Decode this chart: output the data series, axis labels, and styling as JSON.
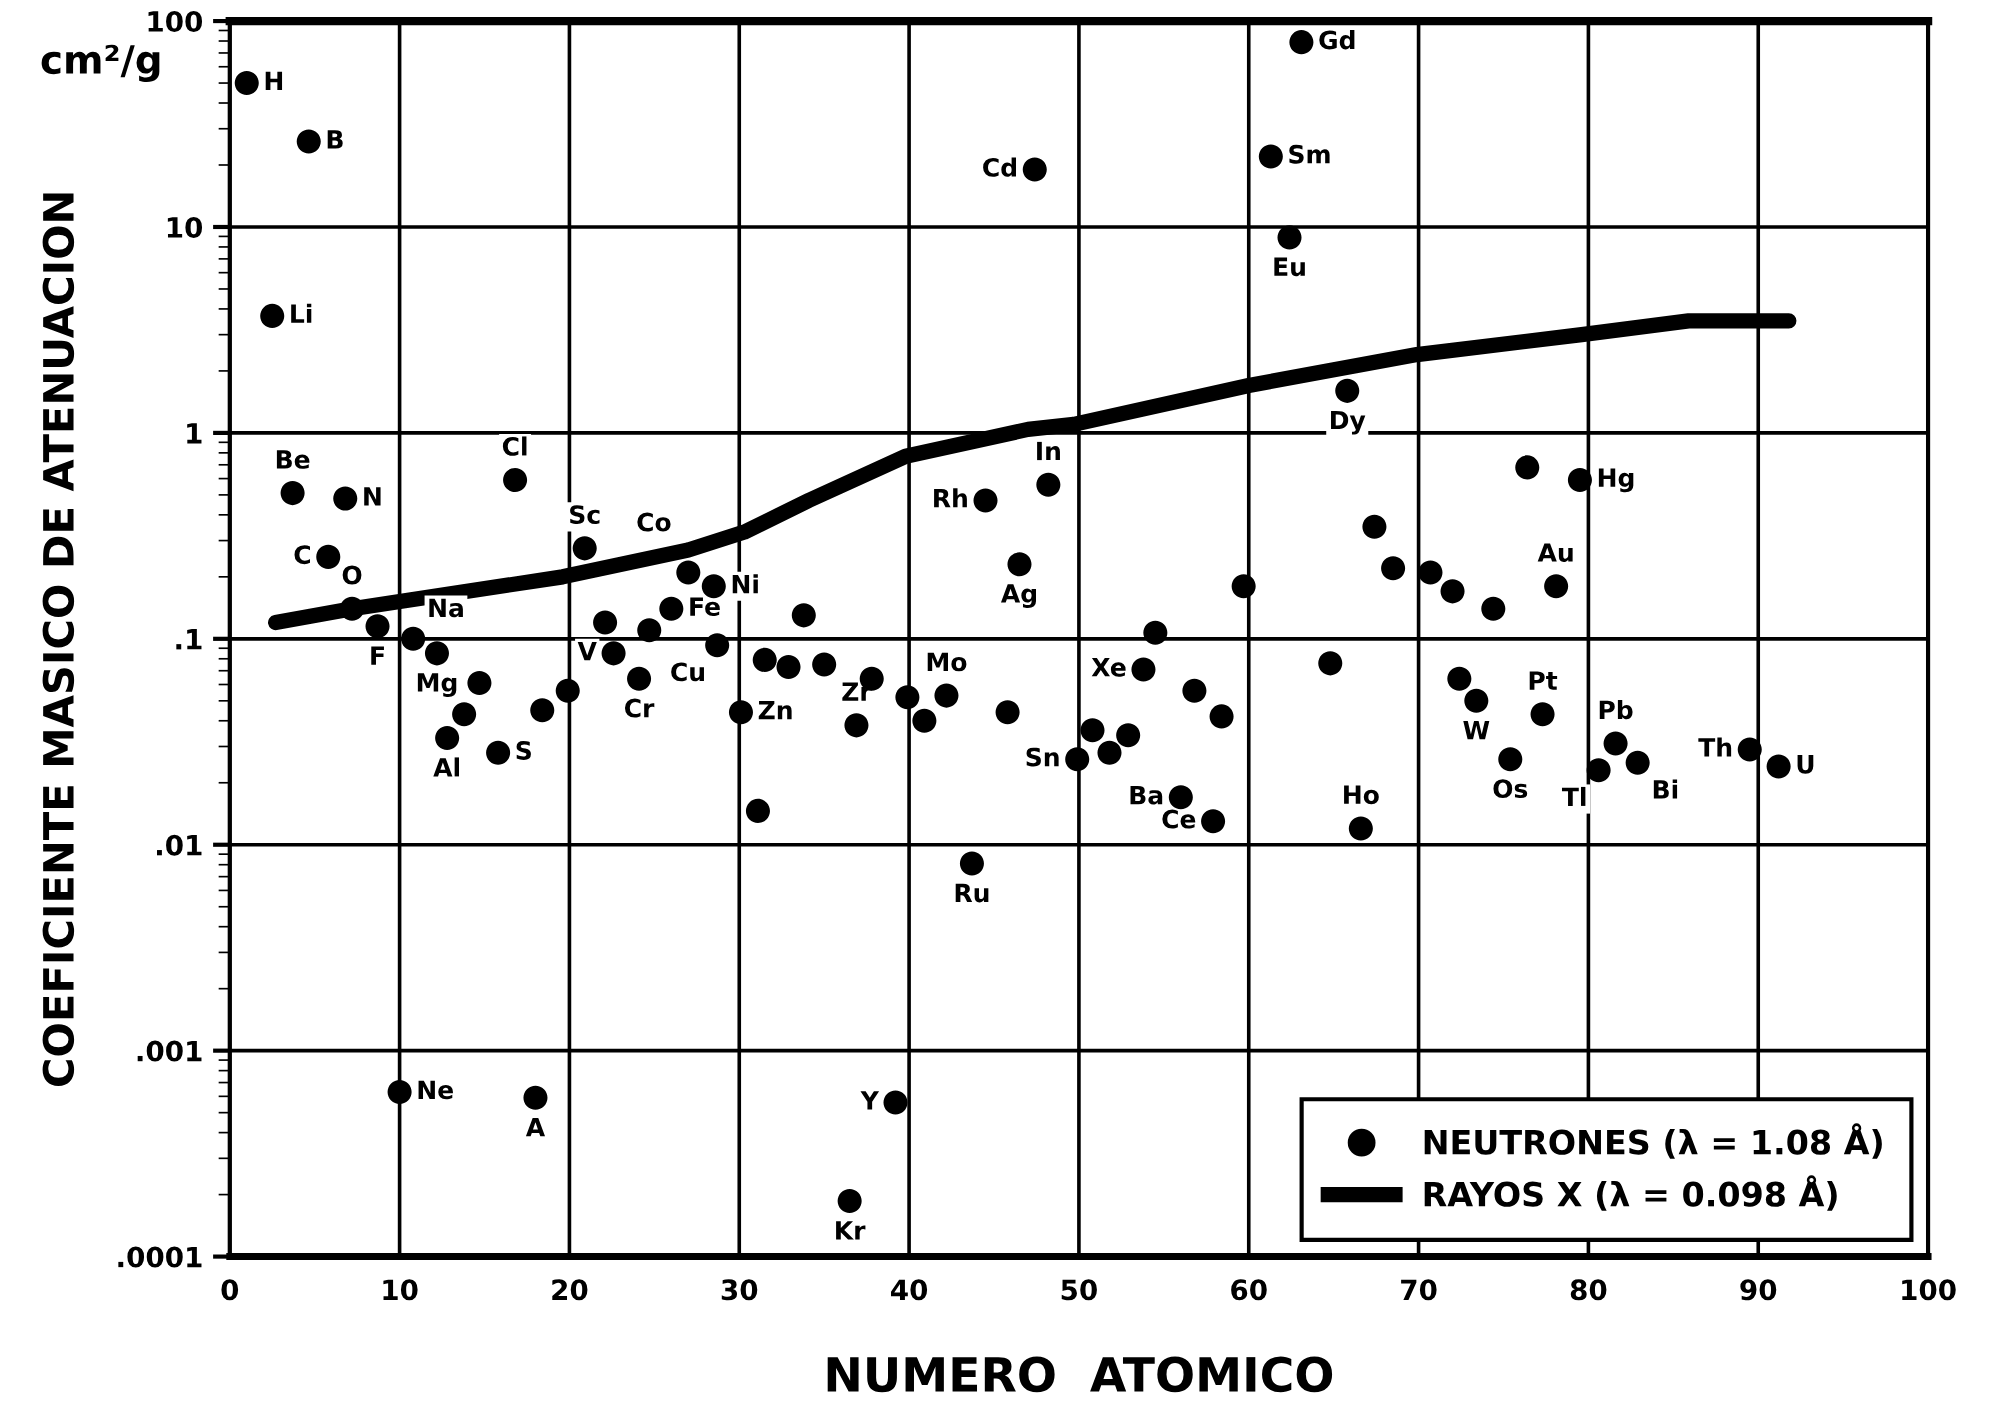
{
  "chart_data": {
    "type": "scatter",
    "xlabel": "NUMERO  ATOMICO",
    "ylabel": "COEFICIENTE MASICO DE ATENUACION",
    "log": "y",
    "grid": true,
    "legend": "bottom right",
    "xlim": [
      0,
      100
    ],
    "xticks": [
      0,
      10,
      20,
      30,
      40,
      50,
      60,
      70,
      80,
      90,
      100
    ],
    "ylim": [
      0.0001,
      100
    ],
    "yticks": [
      {
        "value": 0.0001,
        "label": ".0001"
      },
      {
        "value": 0.001,
        "label": ".001"
      },
      {
        "value": 0.01,
        "label": ".01"
      },
      {
        "value": 0.1,
        "label": ".1"
      },
      1,
      10,
      100
    ],
    "series": [
      {
        "name": "NEUTRONES (λ = 1.08 Å)",
        "color": "#000000",
        "marker": "circle",
        "x": [
          1,
          2.5,
          3.7,
          4.65,
          5.8,
          6.8,
          7.2,
          8.7,
          10,
          10.8,
          12.2,
          12.8,
          13.8,
          14.7,
          15.8,
          16.8,
          18,
          18.4,
          19.9,
          20.9,
          22.1,
          22.6,
          24.1,
          24.7,
          26,
          27,
          28.5,
          28.7,
          30.1,
          31.1,
          31.5,
          32.9,
          33.8,
          35,
          36.5,
          36.9,
          37.8,
          39.2,
          39.9,
          40.9,
          42.2,
          43.7,
          44.5,
          45.8,
          46.5,
          47.4,
          48.2,
          49.9,
          50.8,
          51.8,
          52.9,
          53.8,
          54.5,
          56,
          56.8,
          57.9,
          58.4,
          59.7,
          61.3,
          62.4,
          63.1,
          64.8,
          65.8,
          66.6,
          67.4,
          68.5,
          70.7,
          72,
          72.4,
          73.4,
          74.4,
          75.4,
          76.4,
          77.3,
          78.1,
          79.5,
          80.6,
          81.6,
          82.9,
          89.5,
          91.2
        ],
        "values": [
          50,
          3.7,
          0.51,
          26,
          0.25,
          0.48,
          0.14,
          0.115,
          0.00063,
          0.1,
          0.085,
          0.033,
          0.043,
          0.061,
          0.028,
          0.59,
          0.00059,
          0.045,
          0.056,
          0.275,
          0.12,
          0.085,
          0.064,
          0.11,
          0.14,
          0.21,
          0.18,
          0.093,
          0.044,
          0.0146,
          0.079,
          0.073,
          0.13,
          0.075,
          0.000186,
          0.038,
          0.064,
          0.00056,
          0.052,
          0.04,
          0.053,
          0.0081,
          0.47,
          0.044,
          0.23,
          19,
          0.56,
          0.026,
          0.036,
          0.028,
          0.034,
          0.071,
          0.107,
          0.017,
          0.056,
          0.013,
          0.042,
          0.18,
          22,
          8.9,
          79,
          0.076,
          1.6,
          0.012,
          0.35,
          0.22,
          0.21,
          0.17,
          0.064,
          0.05,
          0.14,
          0.026,
          0.68,
          0.043,
          0.18,
          0.59,
          0.023,
          0.031,
          0.025,
          0.029,
          0.024
        ]
      },
      {
        "name": "RAYOS X (λ = 0.098 Å)",
        "type": "line",
        "color": "#000000",
        "marker": "none",
        "line_style": "solid",
        "x": [
          2.7,
          7.2,
          19.6,
          27,
          30.3,
          34.1,
          39.8,
          47,
          49.7,
          60,
          69.9,
          79.6,
          85.9,
          91.8
        ],
        "values": [
          0.12,
          0.14,
          0.2,
          0.27,
          0.33,
          0.47,
          0.77,
          1.04,
          1.1,
          1.7,
          2.4,
          3.0,
          3.5,
          3.5
        ]
      }
    ],
    "annotations": [
      "cm²/g",
      {
        "text": "H",
        "x": 1,
        "y": 50
      },
      {
        "text": "Li",
        "x": 2.5,
        "y": 3.7
      },
      {
        "text": "Be",
        "x": 3.7,
        "y": 0.51
      },
      {
        "text": "B",
        "x": 4.65,
        "y": 26
      },
      {
        "text": "C",
        "x": 5.8,
        "y": 0.25
      },
      {
        "text": "N",
        "x": 6.8,
        "y": 0.48
      },
      {
        "text": "O",
        "x": 7.2,
        "y": 0.14
      },
      {
        "text": "F",
        "x": 8.7,
        "y": 0.115
      },
      {
        "text": "Ne",
        "x": 10,
        "y": 0.00063
      },
      {
        "text": "Na",
        "x": 10.8,
        "y": 0.1
      },
      {
        "text": "Mg",
        "x": 12.2,
        "y": 0.085
      },
      {
        "text": "Al",
        "x": 12.8,
        "y": 0.033
      },
      {
        "text": "S",
        "x": 15.8,
        "y": 0.028
      },
      {
        "text": "Cl",
        "x": 16.8,
        "y": 0.59
      },
      {
        "text": "A",
        "x": 18,
        "y": 0.00059
      },
      {
        "text": "Sc",
        "x": 20.9,
        "y": 0.275
      },
      {
        "text": "V",
        "x": 22.6,
        "y": 0.085
      },
      {
        "text": "Cr",
        "x": 24.1,
        "y": 0.064
      },
      {
        "text": "Fe",
        "x": 26,
        "y": 0.14
      },
      {
        "text": "Co",
        "x": 27,
        "y": 0.21
      },
      {
        "text": "Ni",
        "x": 28.5,
        "y": 0.18
      },
      {
        "text": "Cu",
        "x": 28.7,
        "y": 0.093
      },
      {
        "text": "Zn",
        "x": 30.1,
        "y": 0.044
      },
      {
        "text": "Kr",
        "x": 36.5,
        "y": 0.000186
      },
      {
        "text": "Zr",
        "x": 36.9,
        "y": 0.038
      },
      {
        "text": "Y",
        "x": 39.2,
        "y": 0.00056
      },
      {
        "text": "Mo",
        "x": 42.2,
        "y": 0.053
      },
      {
        "text": "Ru",
        "x": 43.7,
        "y": 0.0081
      },
      {
        "text": "Rh",
        "x": 44.5,
        "y": 0.47
      },
      {
        "text": "Ag",
        "x": 46.5,
        "y": 0.23
      },
      {
        "text": "Cd",
        "x": 47.4,
        "y": 19
      },
      {
        "text": "In",
        "x": 48.2,
        "y": 0.56
      },
      {
        "text": "Sn",
        "x": 49.9,
        "y": 0.026
      },
      {
        "text": "Xe",
        "x": 53.8,
        "y": 0.071
      },
      {
        "text": "Ba",
        "x": 56,
        "y": 0.017
      },
      {
        "text": "Ce",
        "x": 57.9,
        "y": 0.013
      },
      {
        "text": "Sm",
        "x": 61.3,
        "y": 22
      },
      {
        "text": "Eu",
        "x": 62.4,
        "y": 8.9
      },
      {
        "text": "Gd",
        "x": 63.1,
        "y": 79
      },
      {
        "text": "Dy",
        "x": 65.8,
        "y": 1.6
      },
      {
        "text": "Ho",
        "x": 66.6,
        "y": 0.012
      },
      {
        "text": "W",
        "x": 73.4,
        "y": 0.05
      },
      {
        "text": "Os",
        "x": 75.4,
        "y": 0.026
      },
      {
        "text": "Pt",
        "x": 77.3,
        "y": 0.043
      },
      {
        "text": "Au",
        "x": 78.1,
        "y": 0.18
      },
      {
        "text": "Hg",
        "x": 79.5,
        "y": 0.59
      },
      {
        "text": "Tl",
        "x": 80.6,
        "y": 0.023
      },
      {
        "text": "Pb",
        "x": 81.6,
        "y": 0.031
      },
      {
        "text": "Bi",
        "x": 82.9,
        "y": 0.025
      },
      {
        "text": "Th",
        "x": 89.5,
        "y": 0.029
      },
      {
        "text": "U",
        "x": 91.2,
        "y": 0.024
      }
    ]
  }
}
